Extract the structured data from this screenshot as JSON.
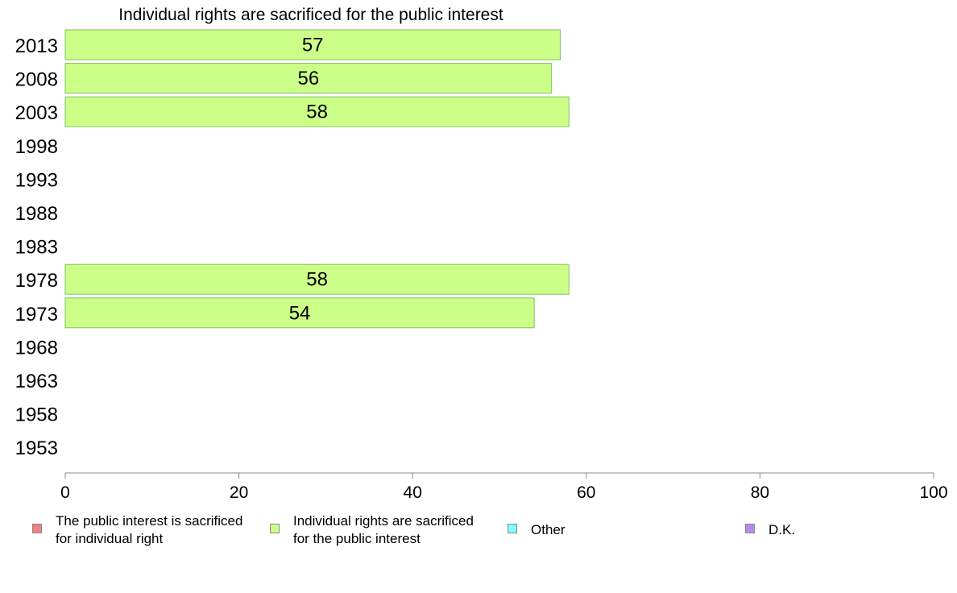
{
  "chart_data": {
    "type": "bar",
    "orientation": "horizontal",
    "title": "Individual rights are sacrificed for the public interest",
    "categories": [
      "2013",
      "2008",
      "2003",
      "1998",
      "1993",
      "1988",
      "1983",
      "1978",
      "1973",
      "1968",
      "1963",
      "1958",
      "1953"
    ],
    "series": [
      {
        "name": "Individual rights are sacrificed for the public interest",
        "color": "#ccff88",
        "values": [
          57,
          56,
          58,
          null,
          null,
          null,
          null,
          58,
          54,
          null,
          null,
          null,
          null
        ]
      }
    ],
    "data_labels": [
      "57",
      "56",
      "58",
      "",
      "",
      "",
      "",
      "58",
      "54",
      "",
      "",
      "",
      ""
    ],
    "xlim": [
      0,
      100
    ],
    "x_ticks": [
      "0",
      "20",
      "40",
      "60",
      "80",
      "100"
    ],
    "grid": false,
    "legend_position": "bottom",
    "legend": [
      {
        "label": "The public interest is sacrificed\nfor individual right",
        "color": "#f08080"
      },
      {
        "label": "Individual rights are sacrificed\nfor the public interest",
        "color": "#ccff88"
      },
      {
        "label": "Other",
        "color": "#80ffff"
      },
      {
        "label": "D.K.",
        "color": "#bb88ee"
      }
    ]
  }
}
